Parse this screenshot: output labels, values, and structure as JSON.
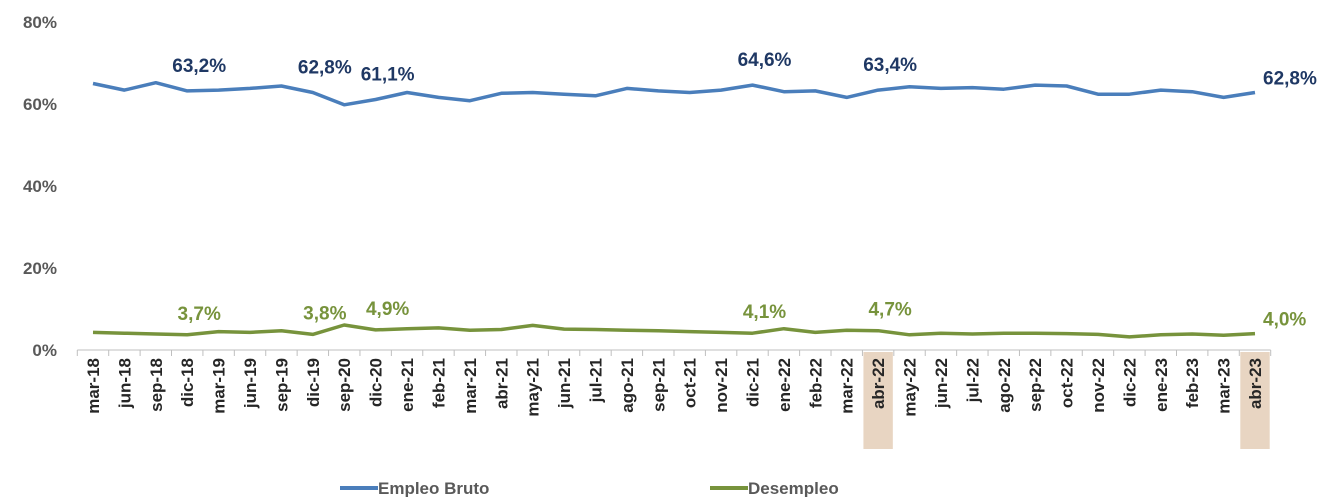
{
  "chart_data": {
    "type": "line",
    "categories": [
      "mar-18",
      "jun-18",
      "sep-18",
      "dic-18",
      "mar-19",
      "jun-19",
      "sep-19",
      "dic-19",
      "sep-20",
      "dic-20",
      "ene-21",
      "feb-21",
      "mar-21",
      "abr-21",
      "may-21",
      "jun-21",
      "jul-21",
      "ago-21",
      "sep-21",
      "oct-21",
      "nov-21",
      "dic-21",
      "ene-22",
      "feb-22",
      "mar-22",
      "abr-22",
      "may-22",
      "jun-22",
      "jul-22",
      "ago-22",
      "sep-22",
      "oct-22",
      "nov-22",
      "dic-22",
      "ene-23",
      "feb-23",
      "mar-23",
      "abr-23"
    ],
    "series": [
      {
        "name": "Empleo Bruto",
        "color": "#4a7ebb",
        "values": [
          65.0,
          63.4,
          65.2,
          63.2,
          63.4,
          63.8,
          64.4,
          62.8,
          59.8,
          61.1,
          62.8,
          61.6,
          60.8,
          62.6,
          62.8,
          62.4,
          62.0,
          63.8,
          63.2,
          62.8,
          63.4,
          64.6,
          63.0,
          63.2,
          61.6,
          63.4,
          64.2,
          63.8,
          64.0,
          63.6,
          64.6,
          64.4,
          62.4,
          62.4,
          63.4,
          63.0,
          61.6,
          62.8
        ],
        "value_labels": [
          null,
          null,
          null,
          "63,2%",
          null,
          null,
          null,
          "62,8%",
          null,
          "61,1%",
          null,
          null,
          null,
          null,
          null,
          null,
          null,
          null,
          null,
          null,
          null,
          "64,6%",
          null,
          null,
          null,
          "63,4%",
          null,
          null,
          null,
          null,
          null,
          null,
          null,
          null,
          null,
          null,
          null,
          "62,8%"
        ]
      },
      {
        "name": "Desempleo",
        "color": "#77933c",
        "values": [
          4.3,
          4.1,
          3.9,
          3.7,
          4.5,
          4.3,
          4.7,
          3.8,
          6.1,
          4.9,
          5.2,
          5.4,
          4.8,
          5.0,
          6.0,
          5.1,
          5.0,
          4.8,
          4.7,
          4.5,
          4.3,
          4.1,
          5.2,
          4.3,
          4.8,
          4.7,
          3.7,
          4.1,
          3.9,
          4.1,
          4.1,
          4.0,
          3.8,
          3.2,
          3.7,
          3.9,
          3.6,
          4.0
        ],
        "value_labels": [
          null,
          null,
          null,
          "3,7%",
          null,
          null,
          null,
          "3,8%",
          null,
          "4,9%",
          null,
          null,
          null,
          null,
          null,
          null,
          null,
          null,
          null,
          null,
          null,
          "4,1%",
          null,
          null,
          null,
          "4,7%",
          null,
          null,
          null,
          null,
          null,
          null,
          null,
          null,
          null,
          null,
          null,
          "4,0%"
        ]
      }
    ],
    "ylim": [
      0,
      80
    ],
    "yticks": [
      {
        "value": 0,
        "label": "0%"
      },
      {
        "value": 20,
        "label": "20%"
      },
      {
        "value": 40,
        "label": "40%"
      },
      {
        "value": 60,
        "label": "60%"
      },
      {
        "value": 80,
        "label": "80%"
      }
    ],
    "grid": false,
    "legend": "bottom",
    "highlight_indices": [
      25,
      37
    ],
    "highlight_color": "#e8d5c2"
  }
}
